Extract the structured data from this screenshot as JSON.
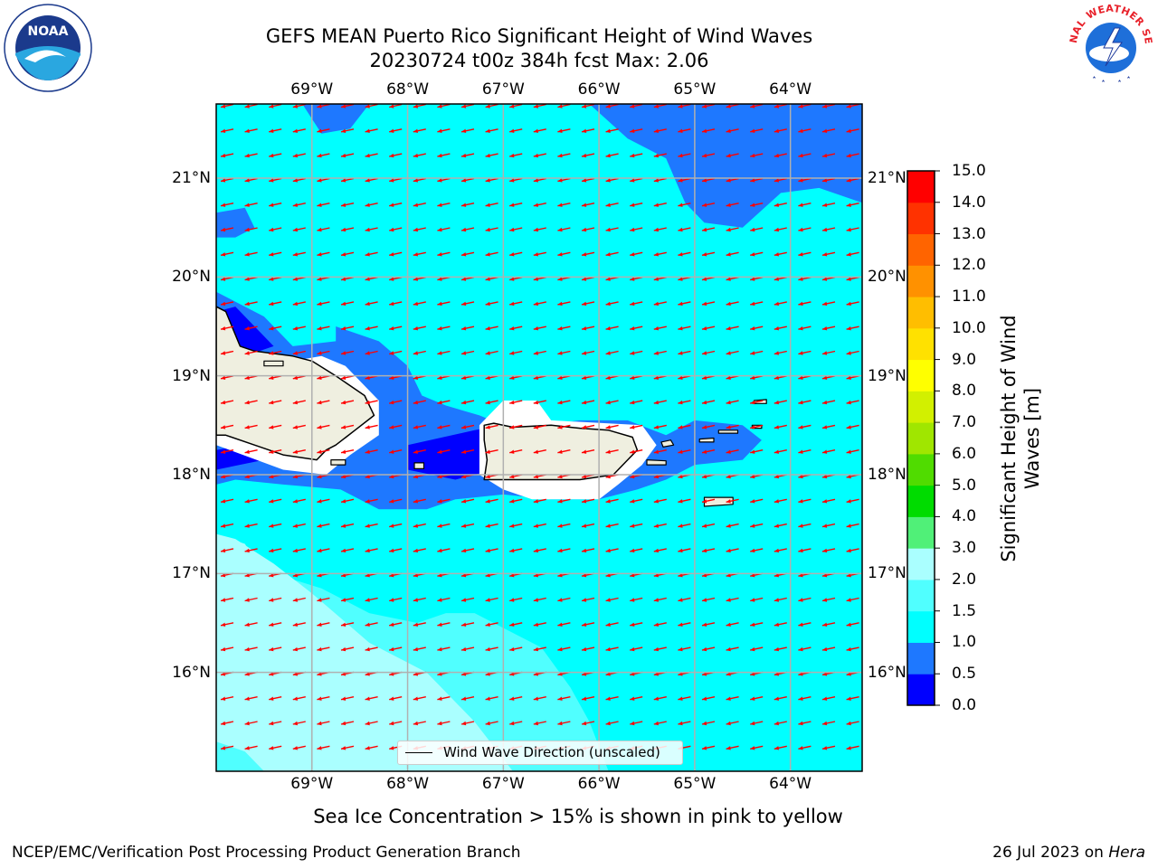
{
  "header": {
    "title_line1": "GEFS MEAN Puerto Rico Significant Height of Wind Waves",
    "title_line2": "20230724 t00z 384h fcst   Max: 2.06"
  },
  "map": {
    "lon_labels": [
      "69°W",
      "68°W",
      "67°W",
      "66°W",
      "65°W",
      "64°W"
    ],
    "lat_labels": [
      "21°N",
      "20°N",
      "19°N",
      "18°N",
      "17°N",
      "16°N"
    ],
    "lon_values": [
      -69,
      -68,
      -67,
      -66,
      -65,
      -64
    ],
    "lat_values": [
      21,
      20,
      19,
      18,
      17,
      16
    ],
    "lon_range": [
      -70,
      -63.25
    ],
    "lat_range": [
      15,
      21.75
    ],
    "sea_fill_color": "#00ffff",
    "land_color": "#efefe0",
    "grid": true,
    "wave_direction_arrows": true,
    "arrow_color": "#ff0000"
  },
  "legend": {
    "label": "Wind Wave Direction (unscaled)",
    "placement": "bottom-center"
  },
  "colorbar": {
    "label": "Significant Height of Wind Waves [m]",
    "ticks": [
      "0.0",
      "0.5",
      "1.0",
      "1.5",
      "2.0",
      "3.0",
      "4.0",
      "5.0",
      "6.0",
      "7.0",
      "8.0",
      "9.0",
      "10.0",
      "11.0",
      "12.0",
      "13.0",
      "14.0",
      "15.0"
    ],
    "colors": [
      "#0000ff",
      "#1e78ff",
      "#00ffff",
      "#50ffff",
      "#aaffff",
      "#50f078",
      "#00dc00",
      "#50dc00",
      "#a0e600",
      "#d2f000",
      "#ffff00",
      "#ffe100",
      "#ffbe00",
      "#ff9100",
      "#ff6400",
      "#ff3200",
      "#ff0000"
    ]
  },
  "subtitle": "Sea Ice Concentration > 15% is shown in pink to yellow",
  "footer": {
    "left": "NCEP/EMC/Verification Post Processing Product Generation Branch",
    "right_prefix": "26 Jul 2023 on ",
    "right_host": "Hera"
  },
  "logos": {
    "left_text": "NOAA",
    "right_text": "NATIONAL WEATHER SERVICE"
  }
}
